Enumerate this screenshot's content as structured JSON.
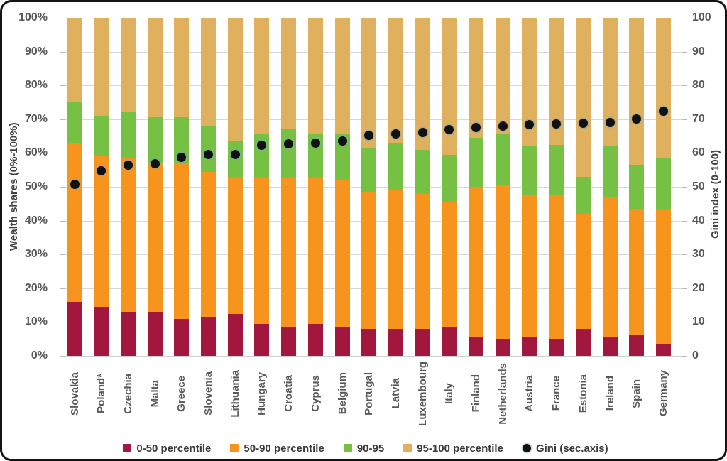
{
  "axes": {
    "left_title": "Wealth shares (0%-100%)",
    "right_title": "Gini index (0-100)",
    "left_ticks": [
      "100%",
      "90%",
      "80%",
      "70%",
      "60%",
      "50%",
      "40%",
      "30%",
      "20%",
      "10%",
      "0%"
    ],
    "right_ticks": [
      "100",
      "90",
      "80",
      "70",
      "60",
      "50",
      "40",
      "30",
      "20",
      "10",
      "0"
    ]
  },
  "colors": {
    "p0_50": "#a2173e",
    "p50_90": "#f7941e",
    "p90_95": "#76c043",
    "p95_100": "#dfb15e",
    "gini": "#111111",
    "gridline": "#d8d8d8"
  },
  "legend": [
    {
      "label": "0-50 percentile",
      "marker": "square",
      "color": "#a2173e"
    },
    {
      "label": "50-90 percentile",
      "marker": "square",
      "color": "#f7941e"
    },
    {
      "label": "90-95",
      "marker": "square",
      "color": "#76c043"
    },
    {
      "label": "95-100 percentile",
      "marker": "square",
      "color": "#dfb15e"
    },
    {
      "label": "Gini (sec.axis)",
      "marker": "circle",
      "color": "#111111"
    }
  ],
  "chart_data": {
    "type": "bar",
    "stacked": true,
    "title": "",
    "ylabel": "Wealth shares (0%-100%)",
    "y2label": "Gini index (0-100)",
    "ylim": [
      0,
      100
    ],
    "y2lim": [
      0,
      100
    ],
    "grid": true,
    "legend_position": "bottom",
    "categories": [
      "Slovakia",
      "Poland*",
      "Czechia",
      "Malta",
      "Greece",
      "Slovenia",
      "Lithuania",
      "Hungary",
      "Croatia",
      "Cyprus",
      "Belgium",
      "Portugal",
      "Latvia",
      "Luxembourg",
      "Italy",
      "Finland",
      "Netherlands",
      "Austria",
      "France",
      "Estonia",
      "Ireland",
      "Spain",
      "Germany"
    ],
    "series": [
      {
        "name": "0-50 percentile",
        "color": "#a2173e",
        "values": [
          16,
          14.5,
          13,
          13,
          11,
          11.5,
          12.5,
          9.5,
          8.5,
          9.5,
          8.5,
          8,
          8,
          8,
          8.5,
          5.5,
          5,
          5.5,
          5,
          8,
          5.5,
          6,
          3.5
        ]
      },
      {
        "name": "50-90 percentile",
        "color": "#f7941e",
        "values": [
          47,
          44.5,
          45.5,
          44,
          46,
          43,
          40,
          43,
          44,
          43,
          43.5,
          40.5,
          41,
          40,
          37,
          44.5,
          45.5,
          42,
          42.5,
          34,
          41.5,
          37.5,
          39.5
        ]
      },
      {
        "name": "90-95",
        "color": "#76c043",
        "values": [
          12,
          12,
          13.5,
          13.5,
          13.5,
          13.5,
          11,
          13,
          14.5,
          13,
          13.5,
          13,
          14,
          13,
          14,
          14.5,
          15,
          14.5,
          15,
          11,
          15,
          13,
          15.5
        ]
      },
      {
        "name": "95-100 percentile",
        "color": "#dfb15e",
        "values": [
          25,
          29,
          28,
          29.5,
          29.5,
          32,
          36.5,
          34.5,
          33,
          34.5,
          34.5,
          38.5,
          37,
          39,
          40.5,
          35.5,
          34.5,
          38,
          37.5,
          47,
          38,
          43.5,
          41.5
        ]
      }
    ],
    "scatter_series": {
      "name": "Gini (sec.axis)",
      "axis": "secondary",
      "color": "#111111",
      "values": [
        50.7,
        54.7,
        56.4,
        56.9,
        58.7,
        59.5,
        59.6,
        62.2,
        62.7,
        63.0,
        63.6,
        65.3,
        65.6,
        66.1,
        67.0,
        67.5,
        68.0,
        68.4,
        68.5,
        68.8,
        69.0,
        70.1,
        72.4
      ]
    }
  }
}
